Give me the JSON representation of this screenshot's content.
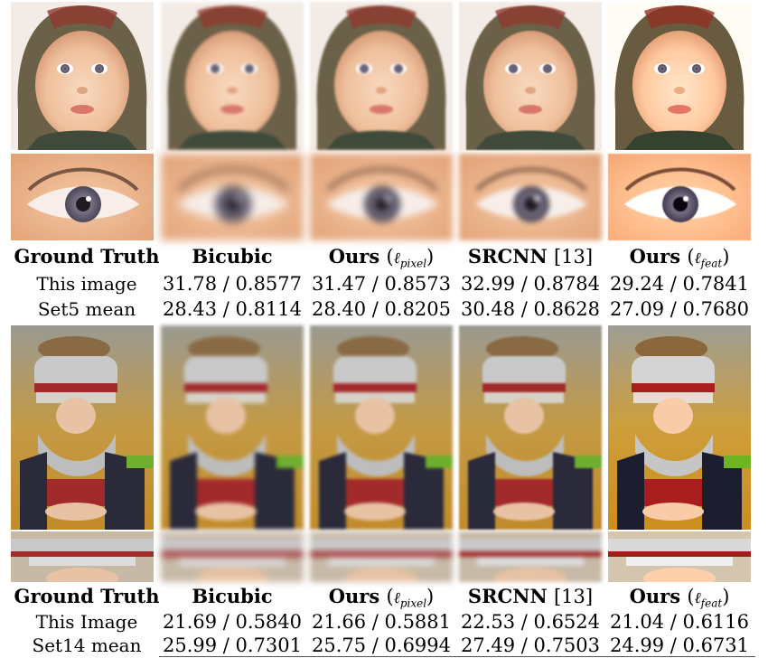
{
  "columns": [
    {
      "bold": "Ground Truth",
      "suffix": "",
      "math": ""
    },
    {
      "bold": "Bicubic",
      "suffix": "",
      "math": ""
    },
    {
      "bold": "Ours",
      "suffix": "",
      "math": "pixel"
    },
    {
      "bold": "SRCNN",
      "suffix": "[13]",
      "math": ""
    },
    {
      "bold": "Ours",
      "suffix": "",
      "math": "feat"
    }
  ],
  "section1": {
    "rows": [
      {
        "label": "This image",
        "values": [
          "31.78 / 0.8577",
          "31.47 / 0.8573",
          "32.99 / 0.8784",
          "29.24 / 0.7841"
        ]
      },
      {
        "label": "Set5 mean",
        "values": [
          "28.43 / 0.8114",
          "28.40 / 0.8205",
          "30.48 / 0.8628",
          "27.09 / 0.7680"
        ]
      }
    ]
  },
  "section2": {
    "rows": [
      {
        "label": "This Image",
        "values": [
          "21.69 / 0.5840",
          "21.66 / 0.5881",
          "22.53 / 0.6524",
          "21.04 / 0.6116"
        ]
      },
      {
        "label": "Set14 mean",
        "values": [
          "25.99 / 0.7301",
          "25.75 / 0.6994",
          "27.49 / 0.7503",
          "24.99 / 0.6731"
        ]
      }
    ]
  },
  "colors": {
    "skin": "#f2c7a6",
    "hat": "#6b6048",
    "hat_red": "#8e3b2e",
    "iris": "#6e6a7a",
    "headdress_silver": "#c9c9c9",
    "garment_red": "#a32a2a",
    "leaves_yellow": "#d8a62a",
    "sleeve_green": "#6fae2e"
  }
}
